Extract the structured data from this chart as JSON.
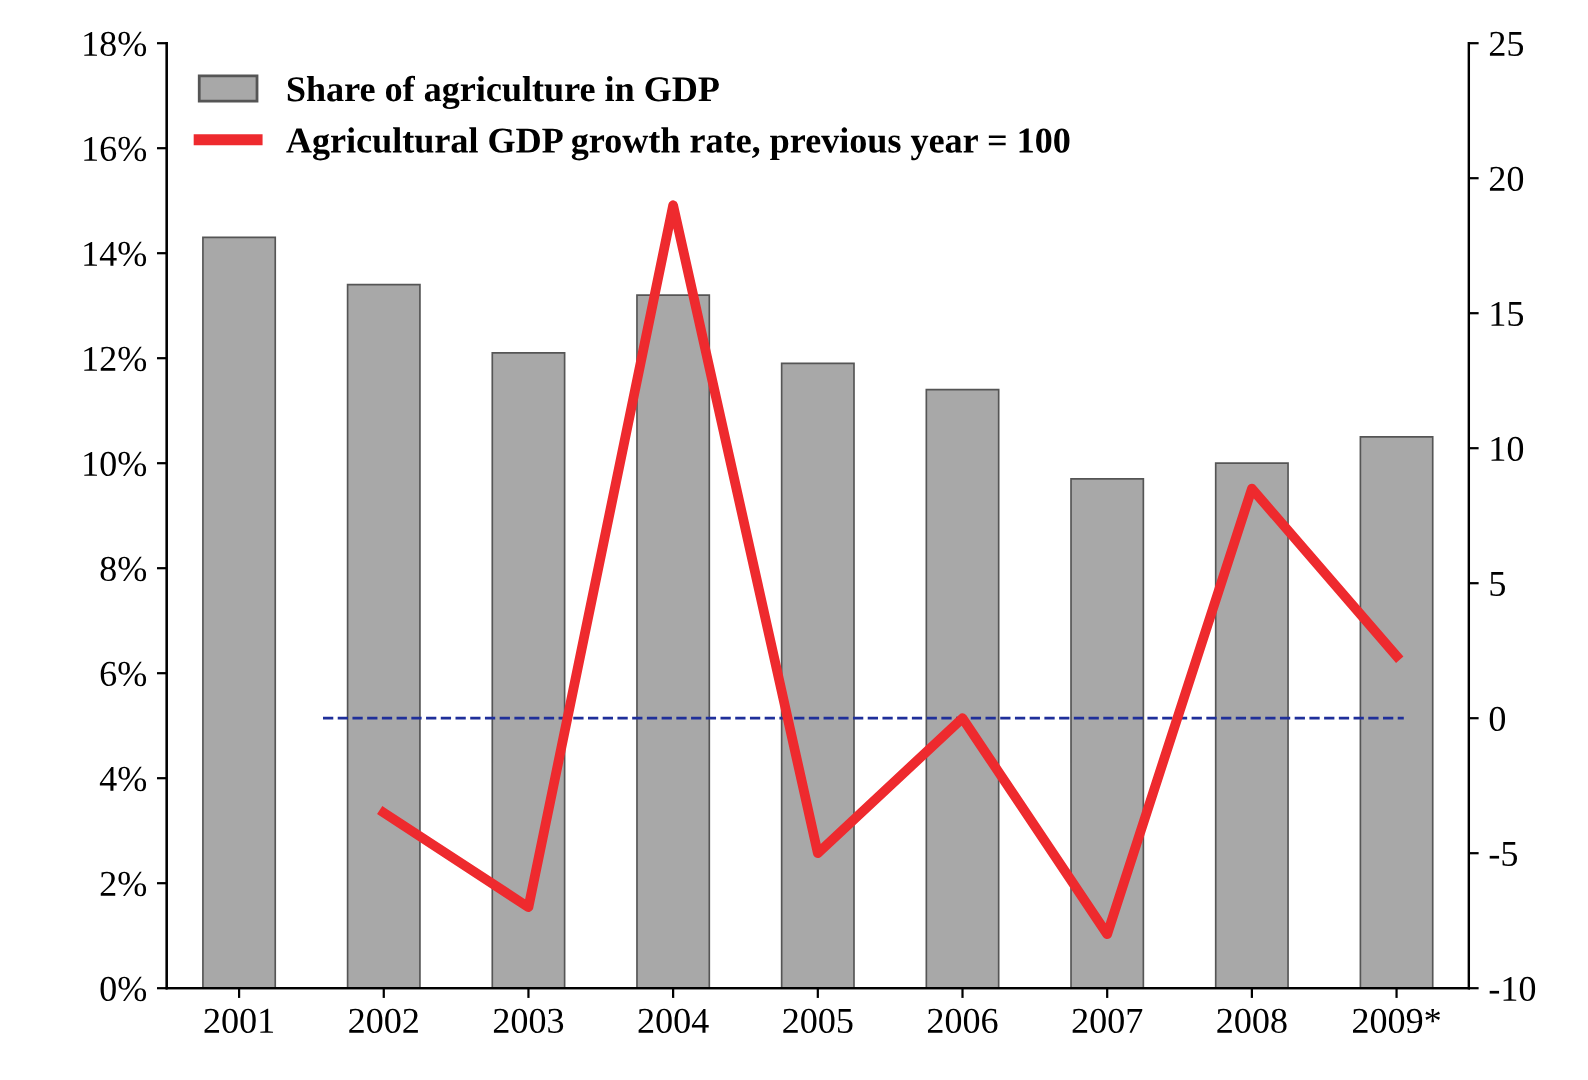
{
  "chart_data": {
    "type": "bar",
    "categories": [
      "2001",
      "2002",
      "2003",
      "2004",
      "2005",
      "2006",
      "2007",
      "2008",
      "2009*"
    ],
    "series": [
      {
        "name": "Share of agriculture in GDP",
        "color": "#a8a8a8",
        "values": [
          14.3,
          13.4,
          12.1,
          13.2,
          11.9,
          11.4,
          9.7,
          10.0,
          10.5
        ]
      },
      {
        "name": "Agricultural GDP growth rate, previous year = 100",
        "type": "line",
        "axis": "y2",
        "color": "#ee2a2e",
        "values": [
          null,
          -3.5,
          -7.0,
          19.0,
          -5.0,
          0,
          -8.0,
          8.5,
          2.3
        ]
      }
    ],
    "ylim": [
      0,
      18
    ],
    "yticks": [
      {
        "value": 0,
        "label": "0%"
      },
      {
        "value": 2,
        "label": "2%"
      },
      {
        "value": 4,
        "label": "4%"
      },
      {
        "value": 6,
        "label": "6%"
      },
      {
        "value": 8,
        "label": "8%"
      },
      {
        "value": 10,
        "label": "10%"
      },
      {
        "value": 12,
        "label": "12%"
      },
      {
        "value": 14,
        "label": "14%"
      },
      {
        "value": 16,
        "label": "16%"
      },
      {
        "value": 18,
        "label": "18%"
      }
    ],
    "y2lim": [
      -10,
      25
    ],
    "y2ticks": [
      -10,
      -5,
      0,
      5,
      10,
      15,
      20,
      25
    ],
    "ref_lines": [
      {
        "axis": "y2",
        "value": 0,
        "color": "#1f2f9a",
        "line_style": "dashed"
      }
    ],
    "legend": "top left",
    "grid": false,
    "marker": "none",
    "line_style": "solid"
  }
}
